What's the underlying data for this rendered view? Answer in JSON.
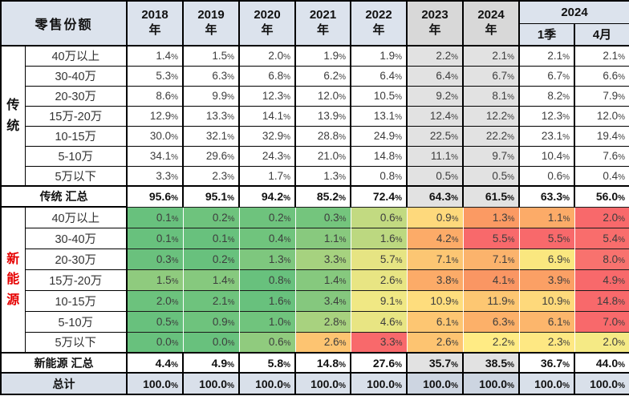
{
  "header": {
    "corner": "零售份额",
    "year_cols": [
      {
        "y": "2018",
        "suffix": "年",
        "gray": false
      },
      {
        "y": "2019",
        "suffix": "年",
        "gray": false
      },
      {
        "y": "2020",
        "suffix": "年",
        "gray": false
      },
      {
        "y": "2021",
        "suffix": "年",
        "gray": false
      },
      {
        "y": "2022",
        "suffix": "年",
        "gray": false
      },
      {
        "y": "2023",
        "suffix": "年",
        "gray": true
      },
      {
        "y": "2024",
        "suffix": "年",
        "gray": true
      }
    ],
    "group": {
      "label": "2024",
      "subs": [
        "1季",
        "4月"
      ]
    }
  },
  "styles": {
    "header_bg": "#dce3ed",
    "gray_header_bg": "#d8d8d8",
    "gray_cell_bg": "#e2e2e2",
    "total_bg": "#d9e0ea",
    "nev_label_color": "#e60000",
    "gray_columns": [
      5,
      6
    ]
  },
  "chart_data": {
    "type": "table",
    "title": "零售份额",
    "columns": [
      "2018年",
      "2019年",
      "2020年",
      "2021年",
      "2022年",
      "2023年",
      "2024年",
      "2024 1季",
      "2024 4月"
    ],
    "sections": [
      {
        "name": "传统",
        "rows": [
          {
            "label": "40万以上",
            "values": [
              "1.4%",
              "1.5%",
              "2.0%",
              "1.9%",
              "1.9%",
              "2.2%",
              "2.1%",
              "2.1%",
              "2.1%"
            ],
            "colors": null
          },
          {
            "label": "30-40万",
            "values": [
              "5.3%",
              "6.3%",
              "6.8%",
              "6.2%",
              "6.4%",
              "6.4%",
              "6.7%",
              "6.7%",
              "6.6%"
            ],
            "colors": null
          },
          {
            "label": "20-30万",
            "values": [
              "8.6%",
              "9.9%",
              "12.3%",
              "12.0%",
              "10.5%",
              "9.2%",
              "8.1%",
              "8.2%",
              "7.9%"
            ],
            "colors": null
          },
          {
            "label": "15万-20万",
            "values": [
              "12.9%",
              "13.3%",
              "14.1%",
              "13.9%",
              "13.1%",
              "12.4%",
              "12.2%",
              "12.3%",
              "12.0%"
            ],
            "colors": null
          },
          {
            "label": "10-15万",
            "values": [
              "30.0%",
              "32.1%",
              "32.9%",
              "28.8%",
              "24.9%",
              "22.5%",
              "22.2%",
              "23.1%",
              "19.4%"
            ],
            "colors": null
          },
          {
            "label": "5-10万",
            "values": [
              "34.1%",
              "29.6%",
              "24.3%",
              "21.0%",
              "14.8%",
              "11.1%",
              "9.7%",
              "10.4%",
              "7.6%"
            ],
            "colors": null
          },
          {
            "label": "5万以下",
            "values": [
              "3.3%",
              "2.3%",
              "1.7%",
              "1.3%",
              "0.8%",
              "0.5%",
              "0.5%",
              "0.6%",
              "0.4%"
            ],
            "colors": null
          }
        ],
        "summary": {
          "label": "传统 汇总",
          "values": [
            "95.6%",
            "95.1%",
            "94.2%",
            "85.2%",
            "72.4%",
            "64.3%",
            "61.5%",
            "63.3%",
            "56.0%"
          ]
        }
      },
      {
        "name": "新能源",
        "rows": [
          {
            "label": "40万以上",
            "values": [
              "0.1%",
              "0.2%",
              "0.2%",
              "0.3%",
              "0.6%",
              "0.9%",
              "1.3%",
              "1.1%",
              "2.0%"
            ],
            "colors": [
              "#68c17d",
              "#6ec37d",
              "#6ec37d",
              "#74c57d",
              "#c2da81",
              "#fed97c",
              "#fb9a63",
              "#fcab68",
              "#f8696b"
            ]
          },
          {
            "label": "30-40万",
            "values": [
              "0.1%",
              "0.1%",
              "0.4%",
              "1.1%",
              "1.6%",
              "4.2%",
              "5.5%",
              "5.5%",
              "5.4%"
            ],
            "colors": [
              "#68c17d",
              "#68c17d",
              "#70c47d",
              "#88c97e",
              "#bcd880",
              "#fcab68",
              "#f8696b",
              "#f8696b",
              "#f96d6c"
            ]
          },
          {
            "label": "20-30万",
            "values": [
              "0.3%",
              "0.2%",
              "1.3%",
              "3.3%",
              "5.7%",
              "7.1%",
              "7.1%",
              "6.9%",
              "8.0%"
            ],
            "colors": [
              "#6ac17d",
              "#68c17d",
              "#7ec77e",
              "#a6d27f",
              "#e6e483",
              "#fcc673",
              "#fbb36c",
              "#fae77f",
              "#f8726e"
            ]
          },
          {
            "label": "15万-20万",
            "values": [
              "1.5%",
              "1.4%",
              "0.8%",
              "1.4%",
              "2.6%",
              "3.8%",
              "4.1%",
              "3.9%",
              "4.9%"
            ],
            "colors": [
              "#8fcb7e",
              "#86c97e",
              "#68c17d",
              "#86c97e",
              "#e8e583",
              "#fcab68",
              "#fa9663",
              "#fba065",
              "#f8696b"
            ]
          },
          {
            "label": "10-15万",
            "values": [
              "2.0%",
              "2.1%",
              "1.6%",
              "3.4%",
              "9.1%",
              "10.9%",
              "11.9%",
              "10.9%",
              "14.8%"
            ],
            "colors": [
              "#6cc27d",
              "#6ec37d",
              "#68c17d",
              "#85c87e",
              "#f0e884",
              "#fedd7d",
              "#fdc772",
              "#fed97b",
              "#f8696b"
            ]
          },
          {
            "label": "5-10万",
            "values": [
              "0.5%",
              "0.9%",
              "1.0%",
              "2.8%",
              "4.6%",
              "6.1%",
              "6.3%",
              "6.1%",
              "7.0%"
            ],
            "colors": [
              "#68c17d",
              "#6ec37d",
              "#70c47d",
              "#a8d27f",
              "#e8e583",
              "#fdc672",
              "#fcb069",
              "#fcb66c",
              "#f8696b"
            ]
          },
          {
            "label": "5万以下",
            "values": [
              "0.0%",
              "0.0%",
              "0.6%",
              "2.6%",
              "3.3%",
              "2.6%",
              "2.2%",
              "2.3%",
              "2.0%"
            ],
            "colors": [
              "#68c17d",
              "#68c17d",
              "#90cb7e",
              "#fdc471",
              "#f8696b",
              "#fdc471",
              "#ffeb84",
              "#fee883",
              "#f5ea85"
            ]
          }
        ],
        "summary": {
          "label": "新能源 汇总",
          "values": [
            "4.4%",
            "4.9%",
            "5.8%",
            "14.8%",
            "27.6%",
            "35.7%",
            "38.5%",
            "36.7%",
            "44.0%"
          ]
        }
      }
    ],
    "total": {
      "label": "总计",
      "values": [
        "100.0%",
        "100.0%",
        "100.0%",
        "100.0%",
        "100.0%",
        "100.0%",
        "100.0%",
        "100.0%",
        "100.0%"
      ]
    }
  }
}
